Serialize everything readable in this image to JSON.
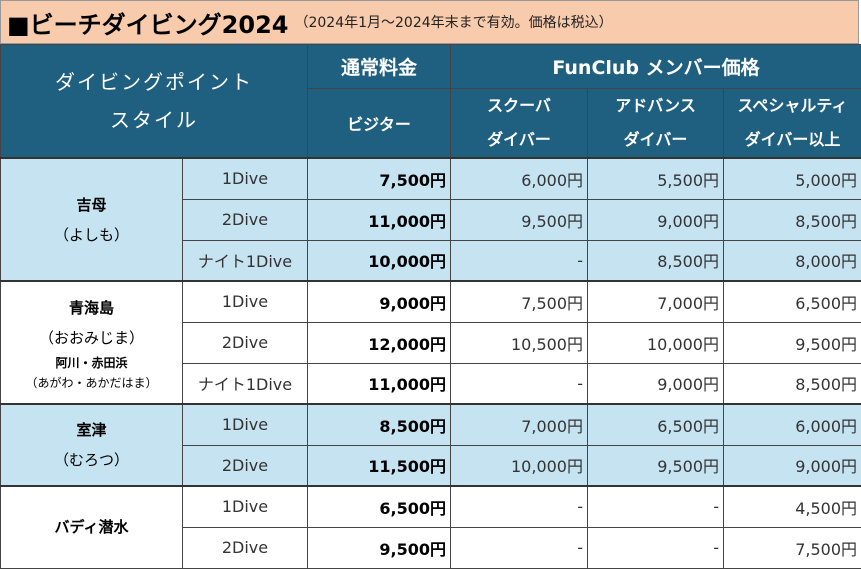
{
  "title": {
    "main": "■ビーチダイビング2024",
    "sub": "（2024年1月〜2024年末まで有効。価格は税込）"
  },
  "header": {
    "style_line1": "ダイビングポイント",
    "style_line2": "スタイル",
    "regular_price": "通常料金",
    "visitor": "ビジター",
    "funclub": "FunClub メンバー価格",
    "scuba_line1": "スクーバ",
    "scuba_line2": "ダイバー",
    "advance_line1": "アドバンス",
    "advance_line2": "ダイバー",
    "specialty_line1": "スペシャルティ",
    "specialty_line2": "ダイバー以上"
  },
  "locations": {
    "yoshimo": {
      "name": "吉母",
      "reading": "（よしも）"
    },
    "oumijima": {
      "name": "青海島",
      "reading": "（おおみじま）",
      "name2": "阿川・赤田浜",
      "reading2": "（あがわ・あかだはま）"
    },
    "murotsu": {
      "name": "室津",
      "reading": "（むろつ）"
    },
    "buddy": {
      "name": "バディ潜水"
    }
  },
  "rows": [
    {
      "dive": "1Dive",
      "visitor": "7,500円",
      "scuba": "6,000円",
      "advance": "5,500円",
      "specialty": "5,000円"
    },
    {
      "dive": "2Dive",
      "visitor": "11,000円",
      "scuba": "9,500円",
      "advance": "9,000円",
      "specialty": "8,500円"
    },
    {
      "dive": "ナイト1Dive",
      "visitor": "10,000円",
      "scuba": "-",
      "advance": "8,500円",
      "specialty": "8,000円"
    },
    {
      "dive": "1Dive",
      "visitor": "9,000円",
      "scuba": "7,500円",
      "advance": "7,000円",
      "specialty": "6,500円"
    },
    {
      "dive": "2Dive",
      "visitor": "12,000円",
      "scuba": "10,500円",
      "advance": "10,000円",
      "specialty": "9,500円"
    },
    {
      "dive": "ナイト1Dive",
      "visitor": "11,000円",
      "scuba": "-",
      "advance": "9,000円",
      "specialty": "8,500円"
    },
    {
      "dive": "1Dive",
      "visitor": "8,500円",
      "scuba": "7,000円",
      "advance": "6,500円",
      "specialty": "6,000円"
    },
    {
      "dive": "2Dive",
      "visitor": "11,500円",
      "scuba": "10,000円",
      "advance": "9,500円",
      "specialty": "9,000円"
    },
    {
      "dive": "1Dive",
      "visitor": "6,500円",
      "scuba": "-",
      "advance": "-",
      "specialty": "4,500円"
    },
    {
      "dive": "2Dive",
      "visitor": "9,500円",
      "scuba": "-",
      "advance": "-",
      "specialty": "7,500円"
    }
  ],
  "colors": {
    "header_bg": "#1f5f80",
    "row_blue": "#c5e3f1",
    "title_bg": "#f8cbad"
  }
}
